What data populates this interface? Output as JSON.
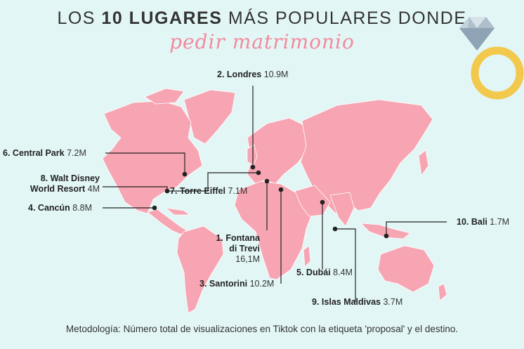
{
  "header": {
    "title_pre": "LOS ",
    "title_bold": "10 LUGARES",
    "title_post": " MÁS POPULARES DONDE",
    "subtitle": "pedir matrimonio"
  },
  "places": [
    {
      "rank": "1.",
      "name": "Fontana di Trevi",
      "line1": "1. Fontana",
      "line2": "di Trevi",
      "value": "16,1M"
    },
    {
      "rank": "2.",
      "name": "Londres",
      "value": "10.9M"
    },
    {
      "rank": "3.",
      "name": "Santorini",
      "value": "10.2M"
    },
    {
      "rank": "4.",
      "name": "Cancún",
      "value": "8.8M"
    },
    {
      "rank": "5.",
      "name": "Dubái",
      "value": "8.4M"
    },
    {
      "rank": "6.",
      "name": "Central Park",
      "value": "7.2M"
    },
    {
      "rank": "7.",
      "name": "Torre Eiffel",
      "value": "7.1M"
    },
    {
      "rank": "8.",
      "name": "Walt Disney World Resort",
      "line1": "8. Walt Disney",
      "line2": "World Resort",
      "value": "4M"
    },
    {
      "rank": "9.",
      "name": "Islas Maldivas",
      "value": "3.7M"
    },
    {
      "rank": "10.",
      "name": "Bali",
      "value": "1.7M"
    }
  ],
  "footer": {
    "methodology": "Metodología: Número total de visualizaciones en Tiktok con la etiqueta 'proposal' y el destino."
  },
  "colors": {
    "background": "#e3f6f6",
    "land": "#f7a5b2",
    "accent": "#f28a9c",
    "ring_gold": "#f2c94c",
    "diamond": "#9fb3c2"
  }
}
